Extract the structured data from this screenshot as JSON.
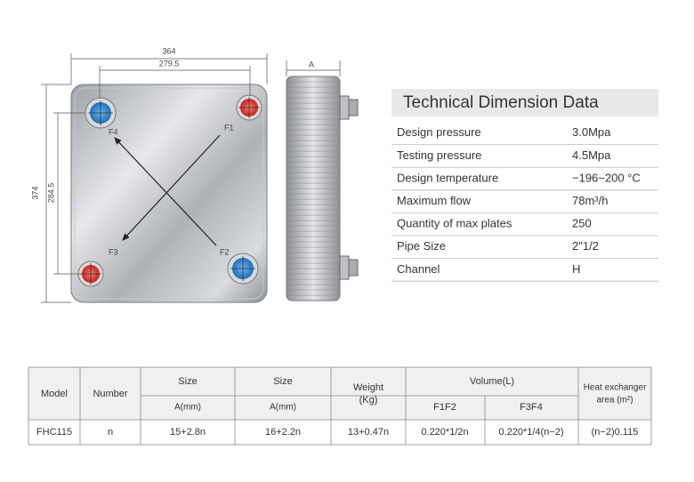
{
  "drawing": {
    "dims": {
      "width": "364",
      "port_width": "279.5",
      "side": "A",
      "height": "374",
      "port_height": "284.5"
    },
    "ports": {
      "f1": "F1",
      "f2": "F2",
      "f3": "F3",
      "f4": "F4"
    }
  },
  "tech": {
    "title": "Technical Dimension Data",
    "rows": [
      [
        "Design pressure",
        "3.0Mpa"
      ],
      [
        "Testing pressure",
        "4.5Mpa"
      ],
      [
        "Design temperature",
        "−196~200 °C"
      ],
      [
        "Maximum flow",
        "78m³/h"
      ],
      [
        "Quantity of max plates",
        "250"
      ],
      [
        "Pipe Size",
        "2\"1/2"
      ],
      [
        "Channel",
        "H"
      ]
    ]
  },
  "table": {
    "head": {
      "model": "Model",
      "number": "Number",
      "size_a": "Size",
      "size_a_unit": "A(mm)",
      "size_b": "Size",
      "size_b_unit": "A(mm)",
      "weight": [
        "Weight",
        "(Kg)"
      ],
      "volume": "Volume(L)",
      "f1f2": "F1F2",
      "f3f4": "F3F4",
      "area": [
        "Heat exchanger",
        "area (m²)"
      ]
    },
    "rows": [
      [
        "FHC115",
        "n",
        "15+2.8n",
        "16+2.2n",
        "13+0.47n",
        "0.220*1/2n",
        "0.220*1/4(n−2)",
        "(n−2)0.115"
      ]
    ]
  }
}
